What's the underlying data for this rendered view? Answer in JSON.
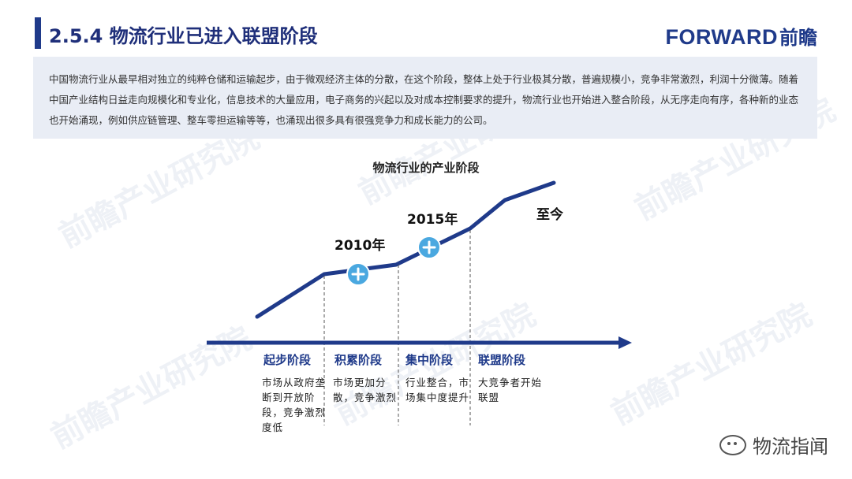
{
  "header": {
    "title": "2.5.4 物流行业已进入联盟阶段",
    "logo_en": "FORWARD",
    "logo_cn": "前瞻"
  },
  "watermark": "前瞻产业研究院",
  "intro": "中国物流行业从最早相对独立的纯粹仓储和运输起步，由于微观经济主体的分散，在这个阶段，整体上处于行业极其分散，普遍规模小，竞争非常激烈，利润十分微薄。随着中国产业结构日益走向规模化和专业化，信息技术的大量应用，电子商务的兴起以及对成本控制要求的提升，物流行业也开始进入整合阶段，从无序走向有序，各种新的业态也开始涌现，例如供应链管理、整车零担运输等等，也涌现出很多具有很强竞争力和成长能力的公司。",
  "diagram": {
    "title": "物流行业的产业阶段",
    "milestones": [
      {
        "label": "2010年"
      },
      {
        "label": "2015年"
      },
      {
        "label": "至今"
      }
    ],
    "stages": [
      {
        "name": "起步阶段",
        "desc": "市场从政府垄断到开放阶段，竞争激烈度低"
      },
      {
        "name": "积累阶段",
        "desc": "市场更加分散，竞争激烈"
      },
      {
        "name": "集中阶段",
        "desc": "行业整合，市场集中度提升"
      },
      {
        "name": "联盟阶段",
        "desc": "大竞争者开始联盟"
      }
    ],
    "colors": {
      "line": "#1f3a8a",
      "marker": "#4aa8e0",
      "stage_text": "#1f3a8a"
    },
    "marker_icon": "plus-icon"
  },
  "footer": {
    "account": "物流指闻",
    "icon": "wechat-icon"
  }
}
